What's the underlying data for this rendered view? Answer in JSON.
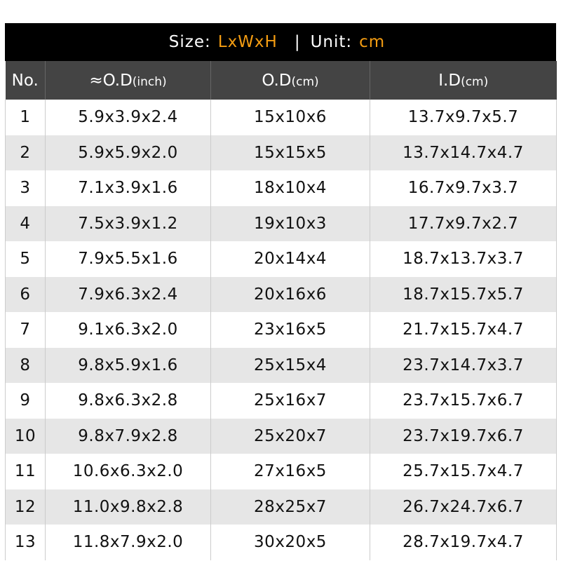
{
  "title": {
    "size_label": "Size:",
    "size_value": "LxWxH",
    "separator": "|",
    "unit_label": "Unit:",
    "unit_value": "cm",
    "accent_color": "#f39c12"
  },
  "headers": [
    {
      "main": "No.",
      "sub": ""
    },
    {
      "main": "≈O.D",
      "sub": "(inch)"
    },
    {
      "main": "O.D",
      "sub": "(cm)"
    },
    {
      "main": "I.D",
      "sub": "(cm)"
    }
  ],
  "rows": [
    [
      "1",
      "5.9x3.9x2.4",
      "15x10x6",
      "13.7x9.7x5.7"
    ],
    [
      "2",
      "5.9x5.9x2.0",
      "15x15x5",
      "13.7x14.7x4.7"
    ],
    [
      "3",
      "7.1x3.9x1.6",
      "18x10x4",
      "16.7x9.7x3.7"
    ],
    [
      "4",
      "7.5x3.9x1.2",
      "19x10x3",
      "17.7x9.7x2.7"
    ],
    [
      "5",
      "7.9x5.5x1.6",
      "20x14x4",
      "18.7x13.7x3.7"
    ],
    [
      "6",
      "7.9x6.3x2.4",
      "20x16x6",
      "18.7x15.7x5.7"
    ],
    [
      "7",
      "9.1x6.3x2.0",
      "23x16x5",
      "21.7x15.7x4.7"
    ],
    [
      "8",
      "9.8x5.9x1.6",
      "25x15x4",
      "23.7x14.7x3.7"
    ],
    [
      "9",
      "9.8x6.3x2.8",
      "25x16x7",
      "23.7x15.7x6.7"
    ],
    [
      "10",
      "9.8x7.9x2.8",
      "25x20x7",
      "23.7x19.7x6.7"
    ],
    [
      "11",
      "10.6x6.3x2.0",
      "27x16x5",
      "25.7x15.7x4.7"
    ],
    [
      "12",
      "11.0x9.8x2.8",
      "28x25x7",
      "26.7x24.7x6.7"
    ],
    [
      "13",
      "11.8x7.9x2.0",
      "30x20x5",
      "28.7x19.7x4.7"
    ]
  ]
}
